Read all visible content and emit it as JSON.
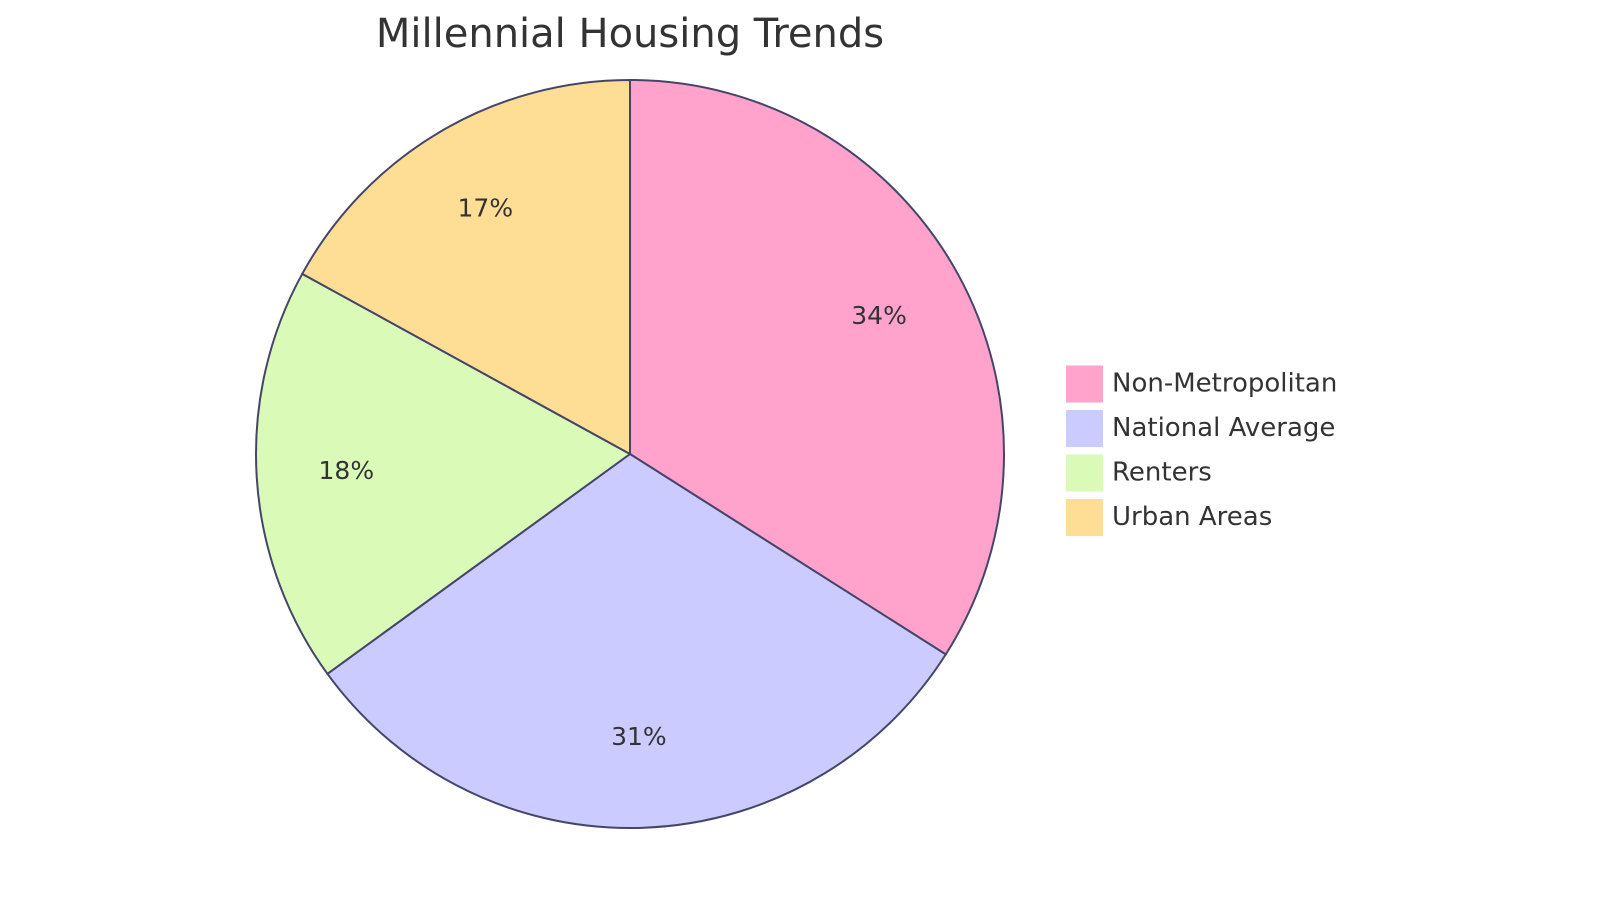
{
  "chart_data": {
    "type": "pie",
    "title": "Millennial Housing Trends",
    "categories": [
      "Non-Metropolitan",
      "National Average",
      "Renters",
      "Urban Areas"
    ],
    "values": [
      34,
      31,
      18,
      17
    ],
    "value_labels": [
      "34%",
      "31%",
      "18%",
      "17%"
    ],
    "colors": [
      "#ffa3cd",
      "#cbcbff",
      "#dafab8",
      "#fedd94"
    ]
  }
}
